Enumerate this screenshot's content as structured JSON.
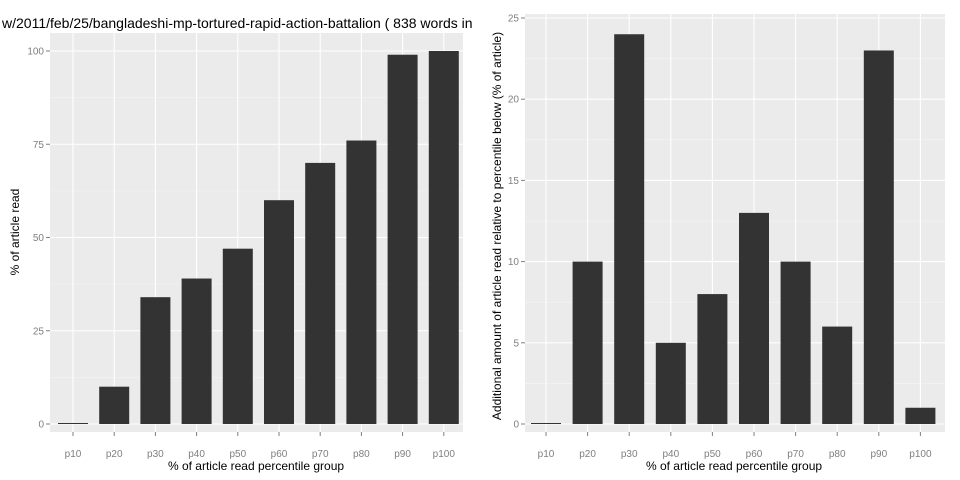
{
  "chart_data": [
    {
      "type": "bar",
      "title": "w/2011/feb/25/bangladeshi-mp-tortured-rapid-action-battalion ( 838 words in",
      "xlabel": "% of article read percentile group",
      "ylabel": "% of article read",
      "categories": [
        "p10",
        "p20",
        "p30",
        "p40",
        "p50",
        "p60",
        "p70",
        "p80",
        "p90",
        "p100"
      ],
      "values": [
        0,
        10,
        34,
        39,
        47,
        60,
        70,
        76,
        99,
        100
      ],
      "ylim": [
        0,
        105
      ],
      "yticks": [
        "0",
        "25",
        "50",
        "75",
        "100"
      ],
      "grid": true,
      "bar_color": "#333333"
    },
    {
      "type": "bar",
      "title": "",
      "xlabel": "% of article read percentile group",
      "ylabel": "Additional amount of article read relative to percentile below (% of article)",
      "categories": [
        "p10",
        "p20",
        "p30",
        "p40",
        "p50",
        "p60",
        "p70",
        "p80",
        "p90",
        "p100"
      ],
      "values": [
        0,
        10,
        24,
        5,
        8,
        13,
        10,
        6,
        23,
        1
      ],
      "ylim": [
        0,
        25
      ],
      "yticks": [
        "0",
        "5",
        "10",
        "15",
        "20",
        "25"
      ],
      "grid": true,
      "bar_color": "#333333"
    }
  ]
}
